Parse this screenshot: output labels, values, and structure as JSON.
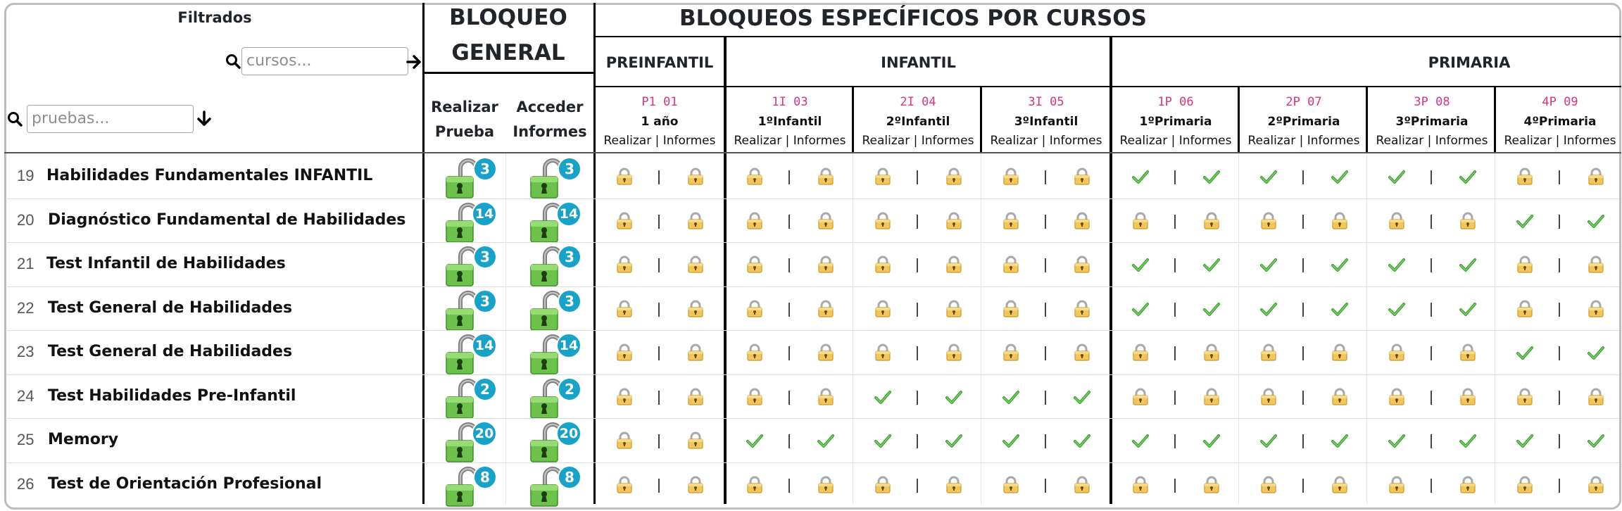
{
  "header": {
    "filter_title": "Filtrados",
    "courses_placeholder": "cursos...",
    "tests_placeholder": "pruebas...",
    "general_block_line1": "BLOQUEO",
    "general_block_line2": "GENERAL",
    "specific_title": "BLOQUEOS ESPECÍFICOS POR CURSOS",
    "realizar_line1": "Realizar",
    "realizar_line2": "Prueba",
    "acceder_line1": "Acceder",
    "acceder_line2": "Informes"
  },
  "groups": [
    {
      "label": "PREINFANTIL"
    },
    {
      "label": "INFANTIL"
    },
    {
      "label": "PRIMARIA"
    }
  ],
  "courses": [
    {
      "code": "P1 01",
      "name": "1 año",
      "sub": "Realizar | Informes"
    },
    {
      "code": "1I 03",
      "name": "1ºInfantil",
      "sub": "Realizar | Informes"
    },
    {
      "code": "2I 04",
      "name": "2ºInfantil",
      "sub": "Realizar | Informes"
    },
    {
      "code": "3I 05",
      "name": "3ºInfantil",
      "sub": "Realizar | Informes"
    },
    {
      "code": "1P 06",
      "name": "1ºPrimaria",
      "sub": "Realizar | Informes"
    },
    {
      "code": "2P 07",
      "name": "2ºPrimaria",
      "sub": "Realizar | Informes"
    },
    {
      "code": "3P 08",
      "name": "3ºPrimaria",
      "sub": "Realizar | Informes"
    },
    {
      "code": "4P 09",
      "name": "4ºPrimaria",
      "sub": "Realizar | Informes"
    }
  ],
  "tests": [
    {
      "num": "19",
      "name": "Habilidades Fundamentales INFANTIL",
      "realizar_count": "3",
      "informes_count": "3",
      "access": [
        "L",
        "L",
        "L",
        "L",
        "C",
        "C",
        "C",
        "L"
      ]
    },
    {
      "num": "20",
      "name": "Diagnóstico Fundamental de Habilidades",
      "realizar_count": "14",
      "informes_count": "14",
      "access": [
        "L",
        "L",
        "L",
        "L",
        "L",
        "L",
        "L",
        "C"
      ]
    },
    {
      "num": "21",
      "name": "Test Infantil de Habilidades",
      "realizar_count": "3",
      "informes_count": "3",
      "access": [
        "L",
        "L",
        "L",
        "L",
        "C",
        "C",
        "C",
        "L"
      ]
    },
    {
      "num": "22",
      "name": "Test General de Habilidades",
      "realizar_count": "3",
      "informes_count": "3",
      "access": [
        "L",
        "L",
        "L",
        "L",
        "C",
        "C",
        "C",
        "L"
      ]
    },
    {
      "num": "23",
      "name": "Test General de Habilidades",
      "realizar_count": "14",
      "informes_count": "14",
      "access": [
        "L",
        "L",
        "L",
        "L",
        "L",
        "L",
        "L",
        "C"
      ]
    },
    {
      "num": "24",
      "name": "Test Habilidades Pre-Infantil",
      "realizar_count": "2",
      "informes_count": "2",
      "access": [
        "L",
        "L",
        "C",
        "C",
        "L",
        "L",
        "L",
        "L"
      ]
    },
    {
      "num": "25",
      "name": "Memory",
      "realizar_count": "20",
      "informes_count": "20",
      "access": [
        "L",
        "C",
        "C",
        "C",
        "C",
        "C",
        "C",
        "C"
      ]
    },
    {
      "num": "26",
      "name": "Test de Orientación Profesional",
      "realizar_count": "8",
      "informes_count": "8",
      "access": [
        "L",
        "L",
        "L",
        "L",
        "L",
        "L",
        "L",
        "L"
      ]
    }
  ]
}
